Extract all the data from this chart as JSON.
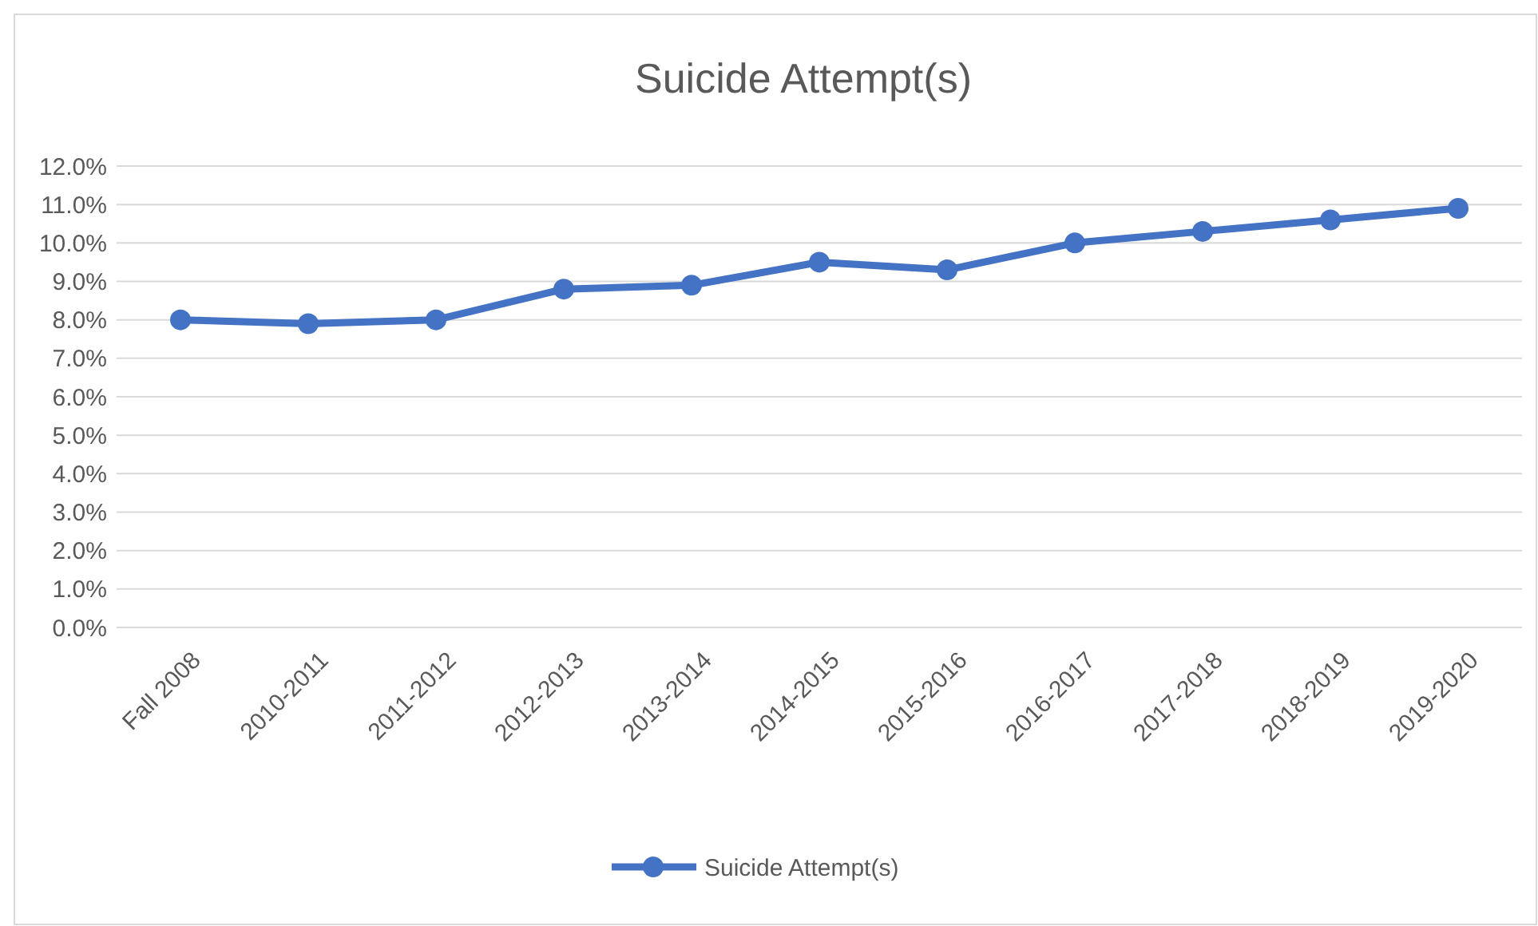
{
  "chart_data": {
    "type": "line",
    "title": "Suicide Attempt(s)",
    "categories": [
      "Fall 2008",
      "2010-2011",
      "2011-2012",
      "2012-2013",
      "2013-2014",
      "2014-2015",
      "2015-2016",
      "2016-2017",
      "2017-2018",
      "2018-2019",
      "2019-2020"
    ],
    "series": [
      {
        "name": "Suicide Attempt(s)",
        "color": "#4472c4",
        "values": [
          8.0,
          7.9,
          8.0,
          8.8,
          8.9,
          9.5,
          9.3,
          10.0,
          10.3,
          10.6,
          10.9
        ]
      }
    ],
    "ylim": [
      0,
      12
    ],
    "yticks": [
      {
        "value": 0,
        "label": "0.0%"
      },
      {
        "value": 1,
        "label": "1.0%"
      },
      {
        "value": 2,
        "label": "2.0%"
      },
      {
        "value": 3,
        "label": "3.0%"
      },
      {
        "value": 4,
        "label": "4.0%"
      },
      {
        "value": 5,
        "label": "5.0%"
      },
      {
        "value": 6,
        "label": "6.0%"
      },
      {
        "value": 7,
        "label": "7.0%"
      },
      {
        "value": 8,
        "label": "8.0%"
      },
      {
        "value": 9,
        "label": "9.0%"
      },
      {
        "value": 10,
        "label": "10.0%"
      },
      {
        "value": 11,
        "label": "11.0%"
      },
      {
        "value": 12,
        "label": "12.0%"
      }
    ],
    "grid": "y",
    "legend": "bottom",
    "marker": "circle",
    "line_style": "solid"
  }
}
